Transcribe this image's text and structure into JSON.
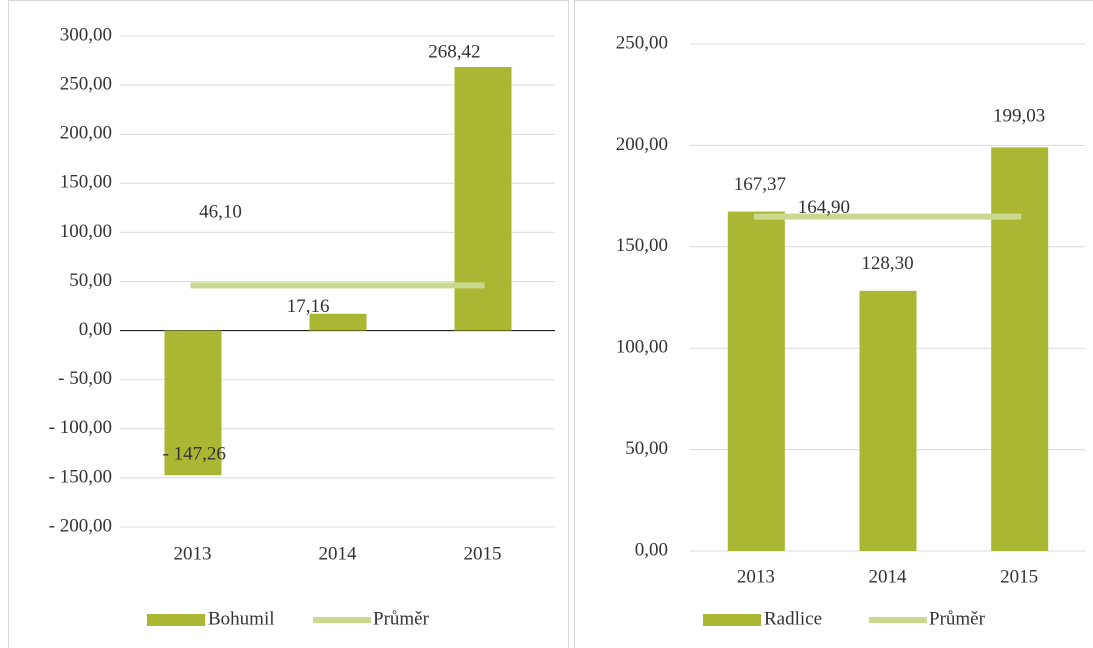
{
  "chart_data": [
    {
      "type": "bar",
      "categories": [
        "2013",
        "2014",
        "2015"
      ],
      "series": [
        {
          "name": "Bohumil",
          "type": "bar",
          "color": "#a9b732",
          "values": [
            -147.26,
            17.16,
            268.42
          ],
          "value_labels": [
            "- 147,26",
            "17,16",
            "268,42"
          ]
        },
        {
          "name": "Průměr",
          "type": "line",
          "color": "#cad98f",
          "values": [
            46.1,
            46.1,
            46.1
          ],
          "value_labels": [
            "46,10",
            null,
            null
          ]
        }
      ],
      "ylim": [
        -200,
        300
      ],
      "yticks": [
        {
          "value": -200,
          "label": "- 200,00"
        },
        {
          "value": -150,
          "label": "- 150,00"
        },
        {
          "value": -100,
          "label": "- 100,00"
        },
        {
          "value": -50,
          "label": "- 50,00"
        },
        {
          "value": 0,
          "label": "0,00"
        },
        {
          "value": 50,
          "label": "50,00"
        },
        {
          "value": 100,
          "label": "100,00"
        },
        {
          "value": 150,
          "label": "150,00"
        },
        {
          "value": 200,
          "label": "200,00"
        },
        {
          "value": 250,
          "label": "250,00"
        },
        {
          "value": 300,
          "label": "300,00"
        }
      ],
      "grid": true,
      "legend": "bottom"
    },
    {
      "type": "bar",
      "categories": [
        "2013",
        "2014",
        "2015"
      ],
      "series": [
        {
          "name": "Radlice",
          "type": "bar",
          "color": "#a9b732",
          "values": [
            167.37,
            128.3,
            199.03
          ],
          "value_labels": [
            "167,37",
            "128,30",
            "199,03"
          ]
        },
        {
          "name": "Průměr",
          "type": "line",
          "color": "#cad98f",
          "values": [
            164.9,
            164.9,
            164.9
          ],
          "value_labels": [
            "164,90",
            null,
            null
          ]
        }
      ],
      "ylim": [
        0,
        250
      ],
      "yticks": [
        {
          "value": 0,
          "label": "0,00"
        },
        {
          "value": 50,
          "label": "50,00"
        },
        {
          "value": 100,
          "label": "100,00"
        },
        {
          "value": 150,
          "label": "150,00"
        },
        {
          "value": 200,
          "label": "200,00"
        },
        {
          "value": 250,
          "label": "250,00"
        }
      ],
      "grid": true,
      "legend": "bottom"
    }
  ]
}
